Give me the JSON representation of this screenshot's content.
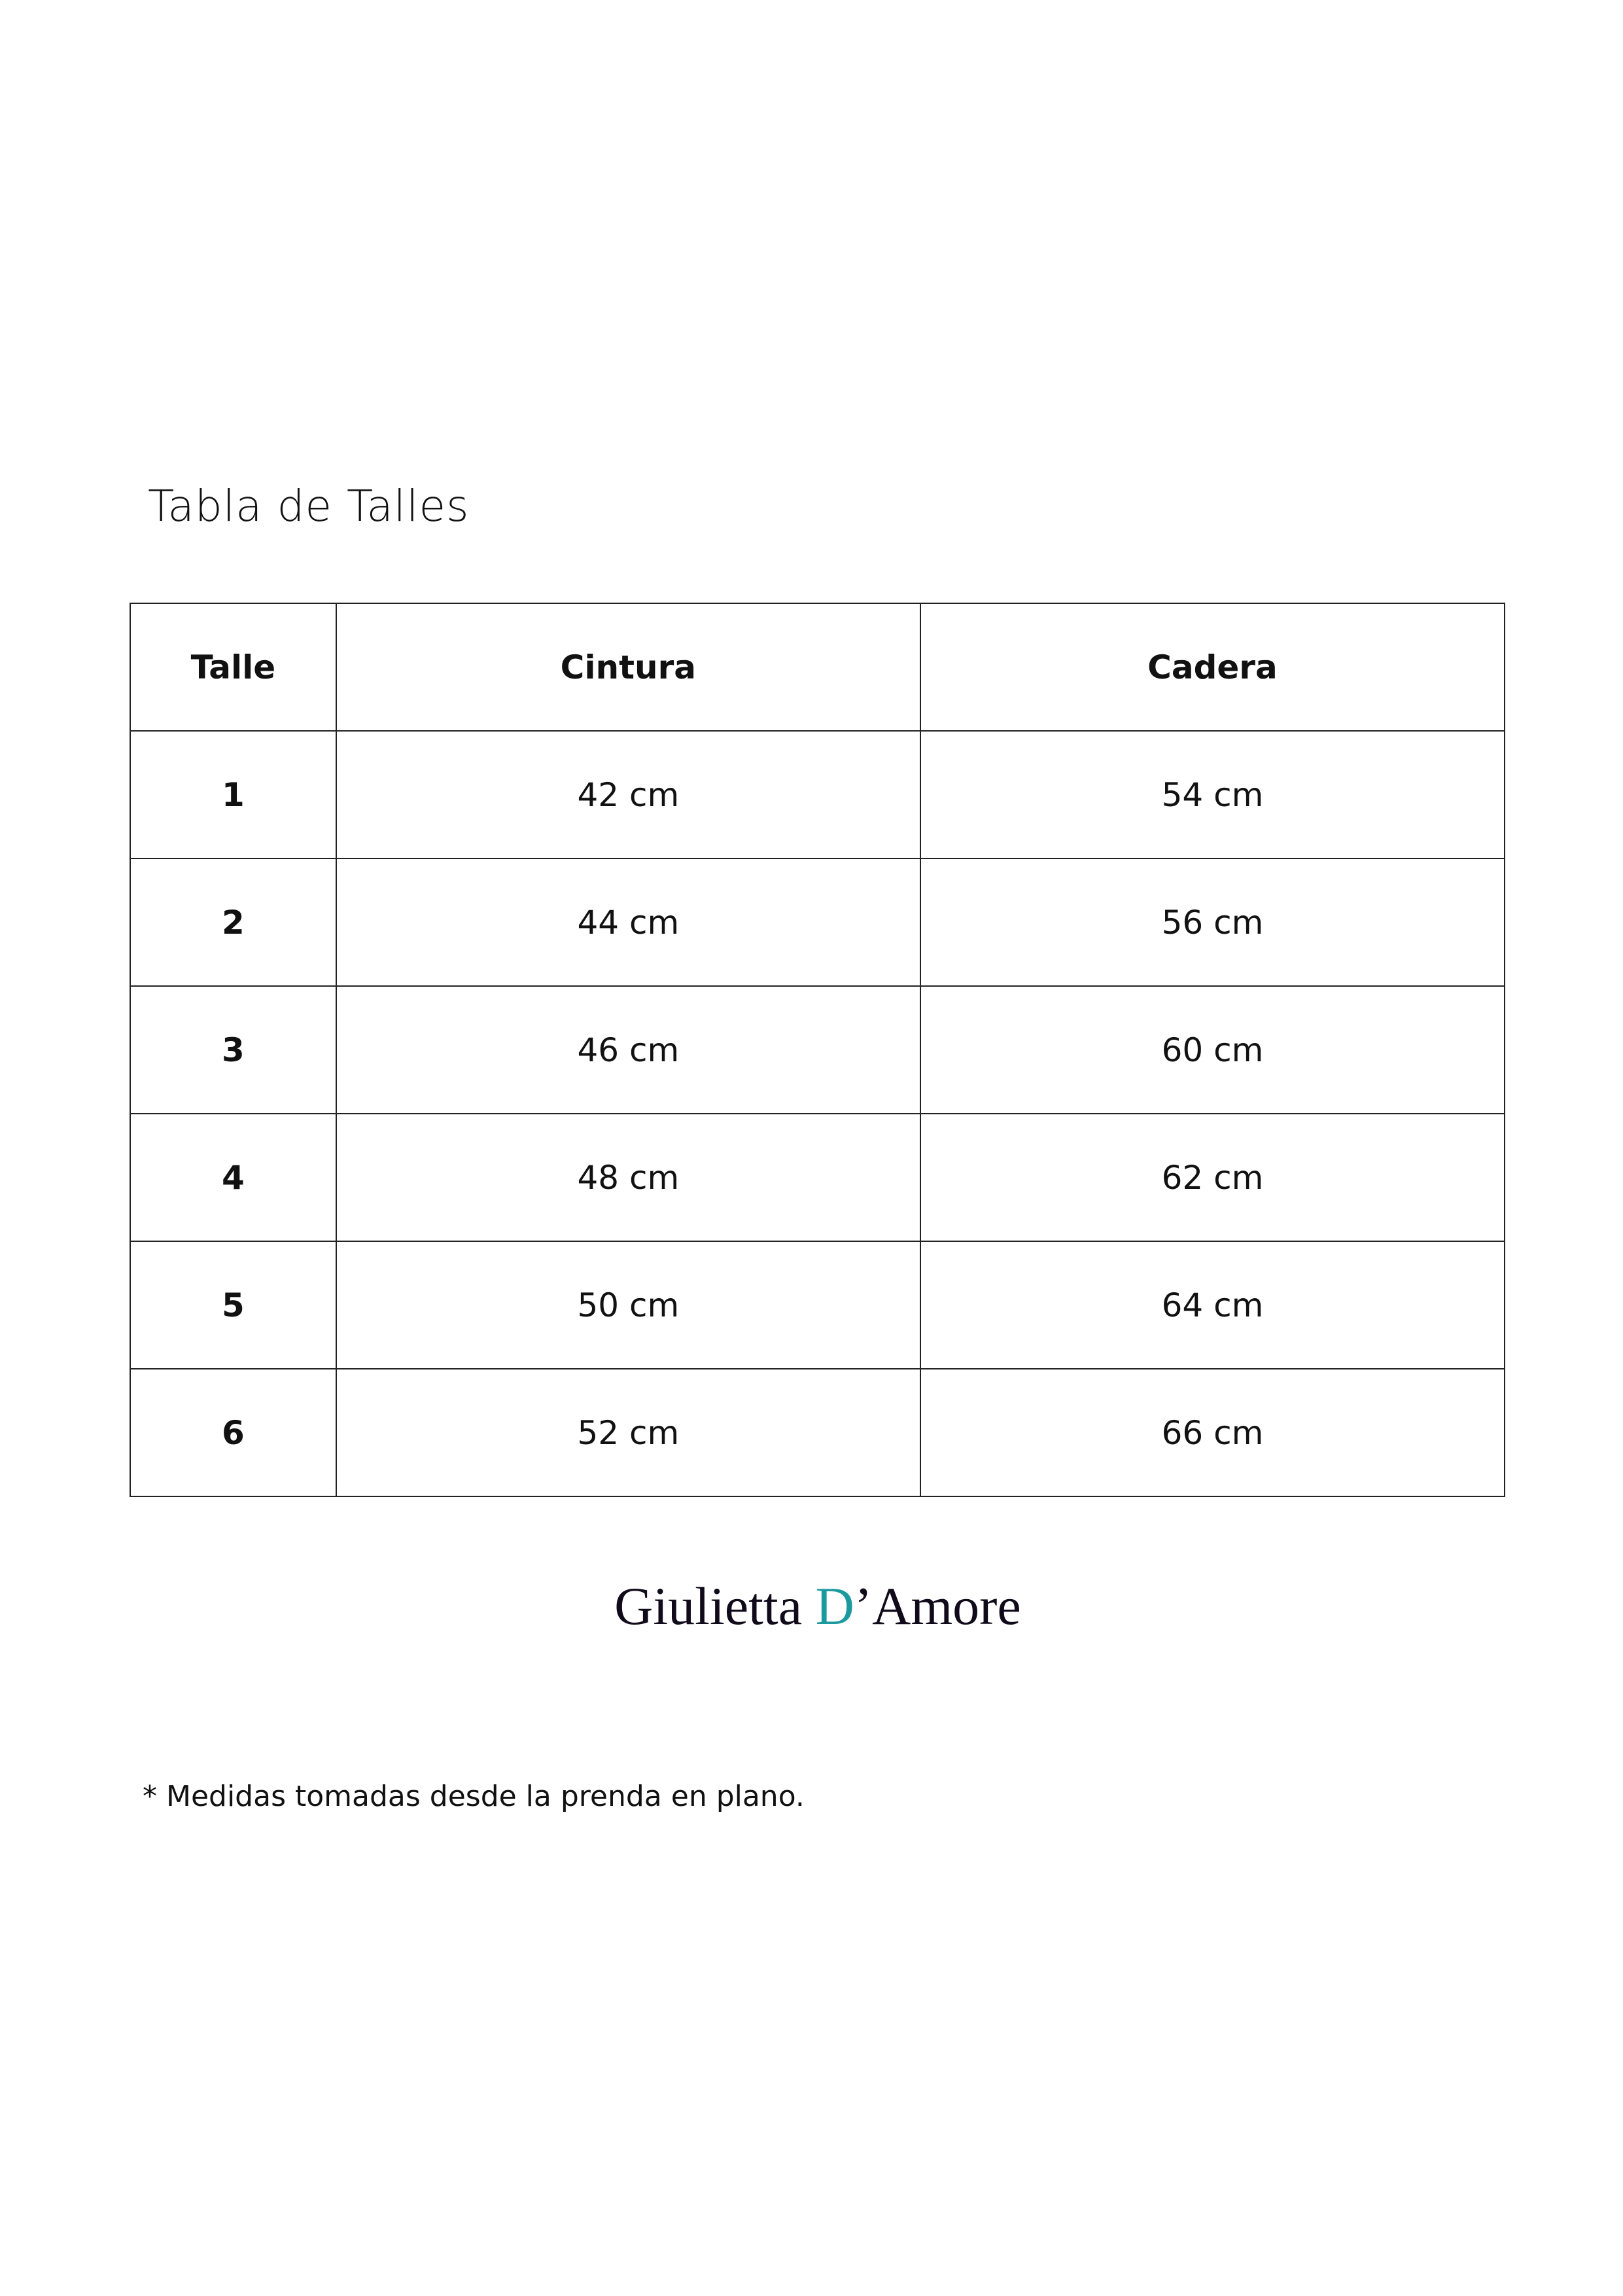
{
  "title": "Tabla de Talles",
  "table": {
    "headers": [
      "Talle",
      "Cintura",
      "Cadera"
    ],
    "rows": [
      [
        "1",
        "42 cm",
        "54 cm"
      ],
      [
        "2",
        "44 cm",
        "56 cm"
      ],
      [
        "3",
        "46 cm",
        "60 cm"
      ],
      [
        "4",
        "48 cm",
        "62 cm"
      ],
      [
        "5",
        "50 cm",
        "64 cm"
      ],
      [
        "6",
        "52 cm",
        "66 cm"
      ]
    ]
  },
  "logo": {
    "part1": "Giulietta ",
    "accent": "D",
    "part2": "’Amore",
    "accent_color": "#1a9a9e"
  },
  "footnote": "* Medidas tomadas desde la prenda en plano."
}
